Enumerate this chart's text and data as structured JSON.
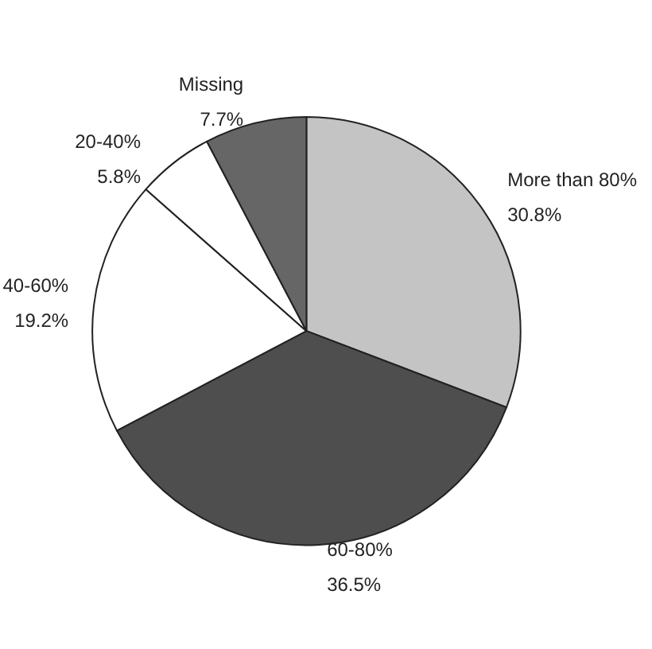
{
  "chart_data": {
    "type": "pie",
    "categories": [
      "More than 80%",
      "60-80%",
      "40-60%",
      "20-40%",
      "Missing"
    ],
    "values": [
      30.8,
      36.5,
      19.2,
      5.8,
      7.7
    ],
    "value_labels": [
      "30.8%",
      "36.5%",
      "19.2%",
      "5.8%",
      "7.7%"
    ],
    "colors": [
      "#c4c4c4",
      "#4e4e4e",
      "#ffffff",
      "#ffffff",
      "#666666"
    ],
    "legend": false
  }
}
